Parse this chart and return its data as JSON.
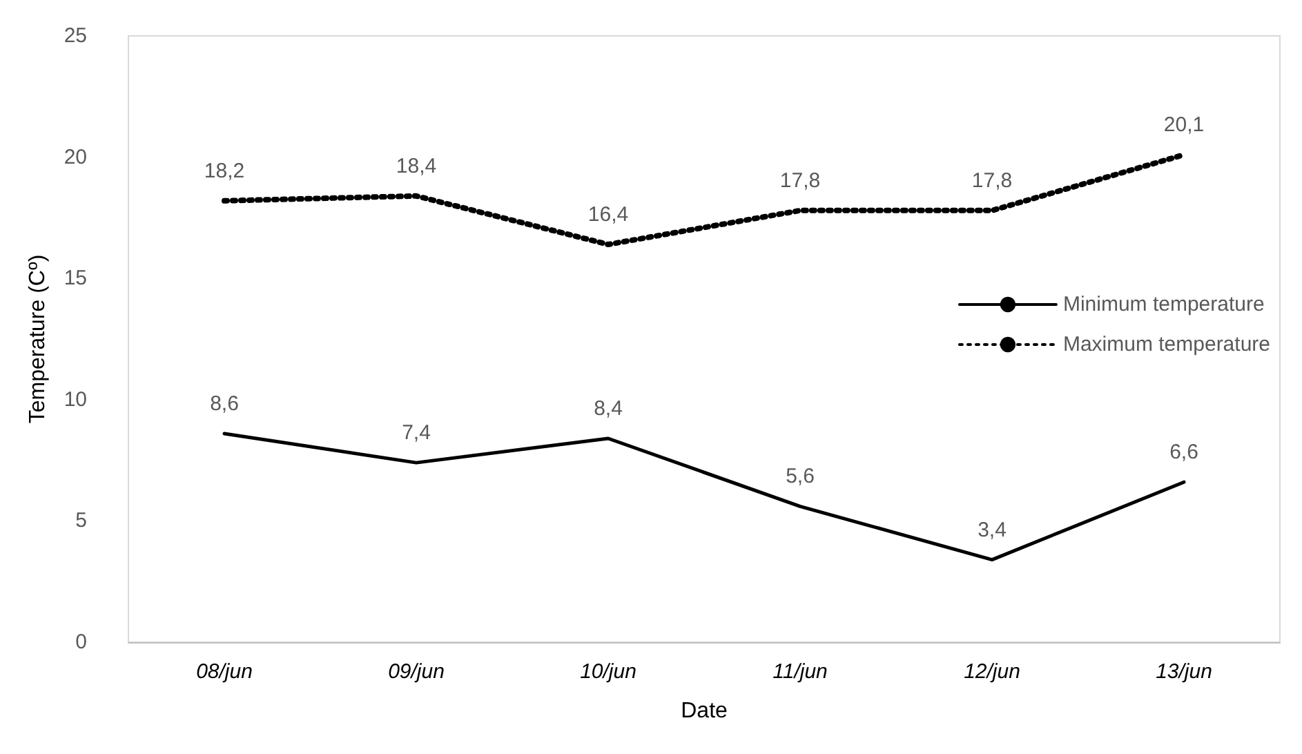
{
  "chart_data": {
    "type": "line",
    "xlabel": "Date",
    "ylabel": "Temperature (Cº)",
    "categories": [
      "08/jun",
      "09/jun",
      "10/jun",
      "11/jun",
      "12/jun",
      "13/jun"
    ],
    "series": [
      {
        "name": "Minimum temperature",
        "color": "#000000",
        "line_style": "solid",
        "values": [
          8.6,
          7.4,
          8.4,
          5.6,
          3.4,
          6.6
        ],
        "value_labels": [
          "8,6",
          "7,4",
          "8,4",
          "5,6",
          "3,4",
          "6,6"
        ]
      },
      {
        "name": "Maximum temperature",
        "color": "#000000",
        "line_style": "dotted",
        "values": [
          18.2,
          18.4,
          16.4,
          17.8,
          17.8,
          20.1
        ],
        "value_labels": [
          "18,2",
          "18,4",
          "16,4",
          "17,8",
          "17,8",
          "20,1"
        ]
      }
    ],
    "ylim": [
      0,
      25
    ],
    "yticks": [
      0,
      5,
      10,
      15,
      20,
      25
    ],
    "grid": false,
    "legend": "right",
    "marker": "none"
  }
}
